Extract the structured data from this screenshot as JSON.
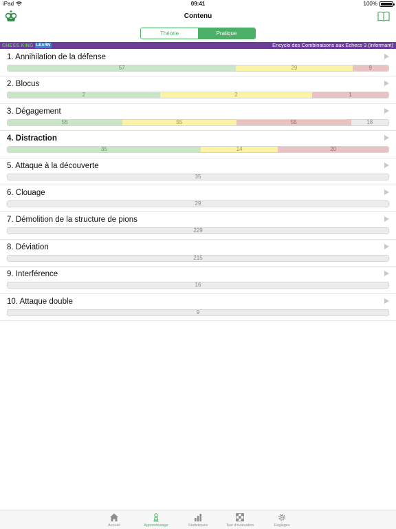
{
  "status_bar": {
    "device": "iPad",
    "time": "09:41",
    "battery": "100%"
  },
  "navbar": {
    "title": "Contenu"
  },
  "segment": {
    "theory": "Théorie",
    "practice": "Pratique"
  },
  "banner": {
    "brand": "CHESS KING",
    "learn": "LEARN",
    "course_title": "Encyclo des Combinaisons aux Echecs 3 (Informant)"
  },
  "items": [
    {
      "label": "1. Annihilation de la défense",
      "green": 57,
      "yellow": 29,
      "red": 9,
      "gray": null
    },
    {
      "label": "2. Blocus",
      "green": 2,
      "yellow": 2,
      "red": 1,
      "gray": null
    },
    {
      "label": "3. Dégagement",
      "green": 55,
      "yellow": 55,
      "red": 55,
      "gray": 18
    },
    {
      "label": "4. Distraction",
      "green": 35,
      "yellow": 14,
      "red": 20,
      "gray": null
    },
    {
      "label": "5. Attaque à la découverte",
      "green": null,
      "yellow": null,
      "red": null,
      "gray": 35
    },
    {
      "label": "6. Clouage",
      "green": null,
      "yellow": null,
      "red": null,
      "gray": 29
    },
    {
      "label": "7. Démolition de la structure de pions",
      "green": null,
      "yellow": null,
      "red": null,
      "gray": 229
    },
    {
      "label": "8. Déviation",
      "green": null,
      "yellow": null,
      "red": null,
      "gray": 215
    },
    {
      "label": "9. Interférence",
      "green": null,
      "yellow": null,
      "red": null,
      "gray": 16
    },
    {
      "label": "10. Attaque double",
      "green": null,
      "yellow": null,
      "red": null,
      "gray": 9
    }
  ],
  "selected_index": 3,
  "tabs": [
    {
      "label": "Accueil",
      "icon": "home-icon"
    },
    {
      "label": "Apprentissage",
      "icon": "pawn-icon"
    },
    {
      "label": "Statistiques",
      "icon": "bar-chart-icon"
    },
    {
      "label": "Test d'évaluation",
      "icon": "chessboard-icon"
    },
    {
      "label": "Réglages",
      "icon": "gear-icon"
    }
  ],
  "active_tab": 1,
  "colors": {
    "accent": "#4caf67",
    "banner": "#6a3d97",
    "correct": "#c9e6c9",
    "partial": "#fbf3a6",
    "wrong": "#e9c2c2",
    "unsolved": "#ececec"
  }
}
